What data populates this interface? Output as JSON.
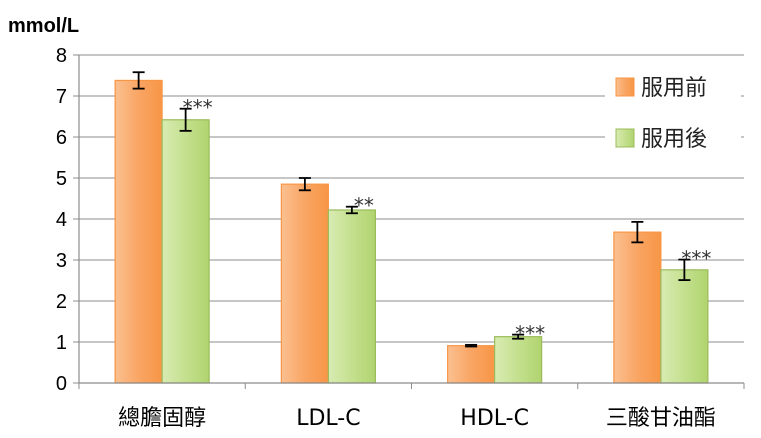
{
  "chart_data": {
    "type": "bar",
    "title": "",
    "unit_label": "mmol/L",
    "xlabel": "",
    "ylabel": "mmol/L",
    "ylim": [
      0,
      8
    ],
    "yticks": [
      0,
      1,
      2,
      3,
      4,
      5,
      6,
      7,
      8
    ],
    "grid": true,
    "legend_position": "top-right",
    "categories": [
      "總膽固醇",
      "LDL-C",
      "HDL-C",
      "三酸甘油酯"
    ],
    "series": [
      {
        "name": "服用前",
        "color": "#F79646",
        "values": [
          7.38,
          4.85,
          0.91,
          3.68
        ],
        "errors": [
          0.2,
          0.15,
          0.02,
          0.25
        ],
        "significance": [
          "",
          "",
          "",
          ""
        ]
      },
      {
        "name": "服用後",
        "color": "#9BBB59",
        "values": [
          6.42,
          4.22,
          1.13,
          2.76
        ],
        "errors": [
          0.27,
          0.08,
          0.05,
          0.25
        ],
        "significance": [
          "***",
          "**",
          "***",
          "***"
        ]
      }
    ]
  }
}
